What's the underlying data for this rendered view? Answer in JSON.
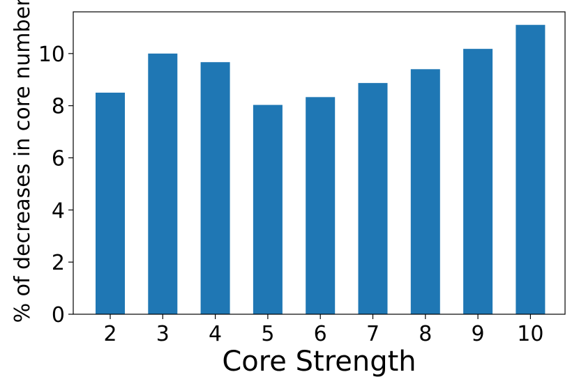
{
  "chart_data": {
    "type": "bar",
    "categories": [
      "2",
      "3",
      "4",
      "5",
      "6",
      "7",
      "8",
      "9",
      "10"
    ],
    "values": [
      8.5,
      10.0,
      9.67,
      8.03,
      8.33,
      8.87,
      9.4,
      10.18,
      11.1
    ],
    "xlabel": "Core Strength",
    "ylabel": "% of decreases in core number",
    "ylim": [
      0,
      11.6
    ],
    "yticks": [
      0,
      2,
      4,
      6,
      8,
      10
    ],
    "bar_color": "#1f77b4",
    "grid": false,
    "legend": "none"
  }
}
